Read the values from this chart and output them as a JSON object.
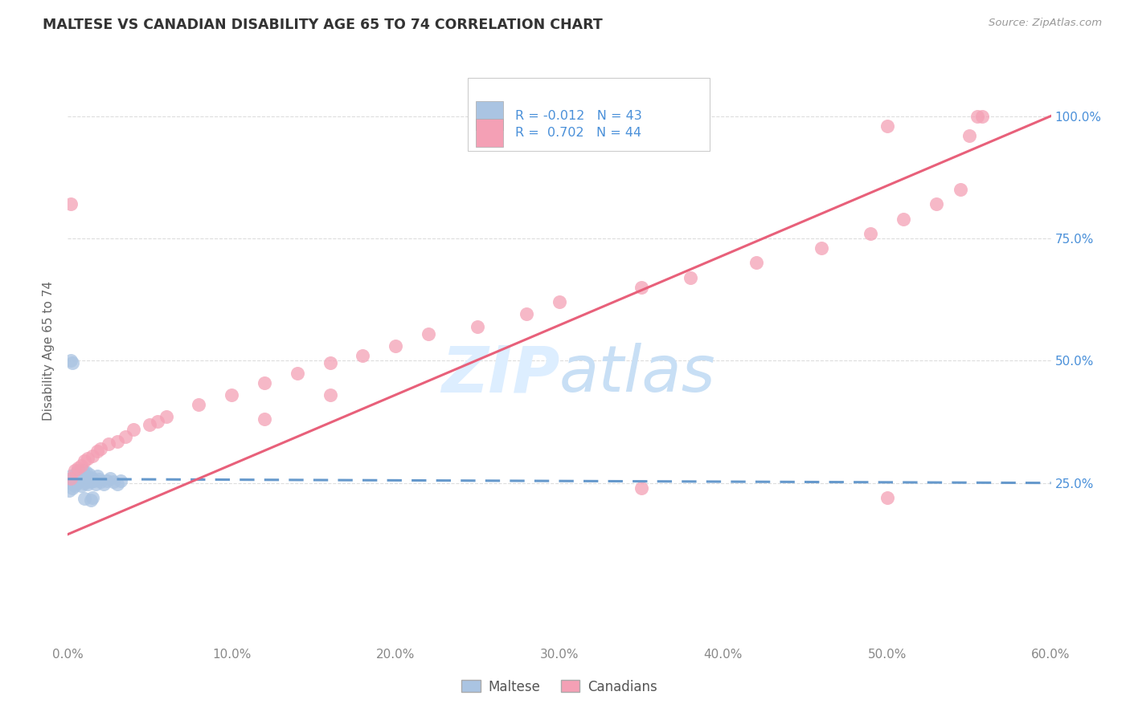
{
  "title": "MALTESE VS CANADIAN DISABILITY AGE 65 TO 74 CORRELATION CHART",
  "source": "Source: ZipAtlas.com",
  "ylabel": "Disability Age 65 to 74",
  "blue_color": "#aac4e2",
  "pink_color": "#f4a0b5",
  "blue_line_color": "#6699cc",
  "pink_line_color": "#e8607a",
  "text_color": "#4a90d9",
  "watermark_color": "#ddeeff",
  "background_color": "#ffffff",
  "grid_color": "#dddddd",
  "maltese_x": [
    0.001,
    0.002,
    0.002,
    0.003,
    0.003,
    0.004,
    0.004,
    0.005,
    0.005,
    0.006,
    0.006,
    0.007,
    0.007,
    0.008,
    0.008,
    0.009,
    0.009,
    0.01,
    0.01,
    0.011,
    0.011,
    0.012,
    0.012,
    0.013,
    0.013,
    0.014,
    0.015,
    0.016,
    0.017,
    0.018,
    0.019,
    0.02,
    0.022,
    0.024,
    0.026,
    0.028,
    0.03,
    0.032,
    0.002,
    0.003,
    0.014,
    0.015,
    0.01
  ],
  "maltese_y": [
    0.235,
    0.25,
    0.265,
    0.24,
    0.26,
    0.245,
    0.255,
    0.25,
    0.27,
    0.26,
    0.275,
    0.255,
    0.265,
    0.245,
    0.27,
    0.26,
    0.275,
    0.25,
    0.265,
    0.258,
    0.272,
    0.248,
    0.262,
    0.255,
    0.268,
    0.252,
    0.26,
    0.255,
    0.248,
    0.265,
    0.258,
    0.252,
    0.248,
    0.255,
    0.26,
    0.252,
    0.248,
    0.255,
    0.5,
    0.495,
    0.215,
    0.22,
    0.218
  ],
  "canadians_x": [
    0.002,
    0.004,
    0.006,
    0.008,
    0.01,
    0.012,
    0.015,
    0.018,
    0.02,
    0.025,
    0.03,
    0.035,
    0.04,
    0.05,
    0.055,
    0.06,
    0.08,
    0.1,
    0.12,
    0.14,
    0.16,
    0.18,
    0.2,
    0.22,
    0.25,
    0.28,
    0.12,
    0.16,
    0.3,
    0.35,
    0.38,
    0.42,
    0.46,
    0.49,
    0.51,
    0.53,
    0.545,
    0.55,
    0.555,
    0.558,
    0.002,
    0.5,
    0.35,
    0.5
  ],
  "canadians_y": [
    0.26,
    0.275,
    0.28,
    0.285,
    0.295,
    0.3,
    0.305,
    0.315,
    0.32,
    0.33,
    0.335,
    0.345,
    0.36,
    0.37,
    0.375,
    0.385,
    0.41,
    0.43,
    0.455,
    0.475,
    0.495,
    0.51,
    0.53,
    0.555,
    0.57,
    0.595,
    0.38,
    0.43,
    0.62,
    0.65,
    0.67,
    0.7,
    0.73,
    0.76,
    0.79,
    0.82,
    0.85,
    0.96,
    1.0,
    1.0,
    0.82,
    0.22,
    0.24,
    0.98
  ],
  "pink_line_x": [
    0.0,
    0.6
  ],
  "pink_line_y": [
    0.145,
    1.0
  ],
  "blue_line_x": [
    0.0,
    0.6
  ],
  "blue_line_y": [
    0.258,
    0.25
  ],
  "xlim": [
    0.0,
    0.6
  ],
  "ylim": [
    -0.08,
    1.12
  ],
  "xtick_vals": [
    0.0,
    0.1,
    0.2,
    0.3,
    0.4,
    0.5,
    0.6
  ],
  "xtick_labels": [
    "0.0%",
    "10.0%",
    "20.0%",
    "30.0%",
    "40.0%",
    "50.0%",
    "60.0%"
  ],
  "ytick_vals": [
    0.25,
    0.5,
    0.75,
    1.0
  ],
  "ytick_labels": [
    "25.0%",
    "50.0%",
    "75.0%",
    "100.0%"
  ]
}
